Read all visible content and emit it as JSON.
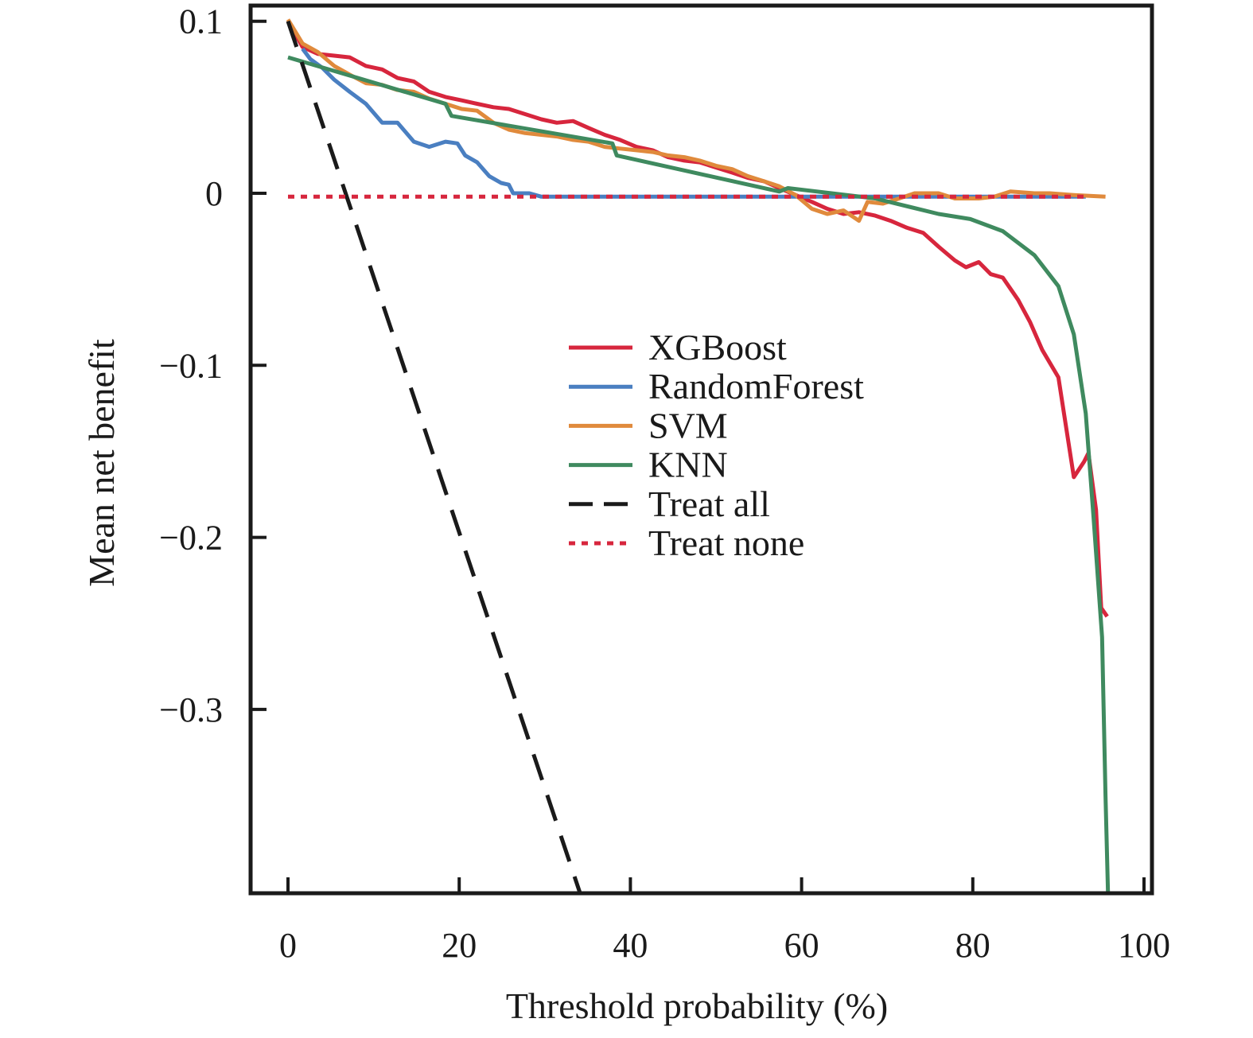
{
  "chart_data": {
    "type": "line",
    "title": "",
    "xlabel": "Threshold probability (%)",
    "ylabel": "Mean net benefit",
    "xlim": [
      0,
      100
    ],
    "ylim": [
      -0.408,
      0.111
    ],
    "grid": false,
    "legend_position": "center-right",
    "x_ticks": [
      0,
      20,
      40,
      60,
      80,
      100
    ],
    "x_tick_labels": [
      "0",
      "20",
      "40",
      "60",
      "80",
      "100"
    ],
    "y_ticks": [
      0.1,
      0,
      -0.1,
      -0.2,
      -0.3
    ],
    "y_tick_labels": [
      "0.1",
      "0",
      "−0.1",
      "−0.2",
      "−0.3"
    ],
    "series": [
      {
        "name": "XGBoost",
        "color": "#d7263d",
        "style": "solid",
        "points": [
          [
            0,
            0.1
          ],
          [
            1.7,
            0.085
          ],
          [
            3.5,
            0.081
          ],
          [
            5.4,
            0.08
          ],
          [
            7.2,
            0.079
          ],
          [
            9.1,
            0.074
          ],
          [
            11.0,
            0.072
          ],
          [
            12.8,
            0.067
          ],
          [
            14.7,
            0.065
          ],
          [
            16.5,
            0.059
          ],
          [
            18.4,
            0.056
          ],
          [
            20.3,
            0.054
          ],
          [
            22.1,
            0.052
          ],
          [
            24.0,
            0.05
          ],
          [
            25.8,
            0.049
          ],
          [
            27.7,
            0.046
          ],
          [
            29.6,
            0.043
          ],
          [
            31.4,
            0.041
          ],
          [
            33.3,
            0.042
          ],
          [
            35.1,
            0.038
          ],
          [
            37.0,
            0.034
          ],
          [
            38.8,
            0.031
          ],
          [
            40.7,
            0.027
          ],
          [
            42.6,
            0.025
          ],
          [
            44.4,
            0.021
          ],
          [
            46.3,
            0.019
          ],
          [
            48.1,
            0.018
          ],
          [
            50.0,
            0.015
          ],
          [
            51.9,
            0.012
          ],
          [
            53.7,
            0.009
          ],
          [
            55.6,
            0.007
          ],
          [
            57.4,
            0.003
          ],
          [
            59.3,
            -0.001
          ],
          [
            61.2,
            -0.005
          ],
          [
            63.0,
            -0.009
          ],
          [
            64.9,
            -0.012
          ],
          [
            66.7,
            -0.011
          ],
          [
            68.6,
            -0.013
          ],
          [
            70.4,
            -0.016
          ],
          [
            72.3,
            -0.02
          ],
          [
            74.2,
            -0.023
          ],
          [
            76.0,
            -0.031
          ],
          [
            77.9,
            -0.039
          ],
          [
            79.2,
            -0.043
          ],
          [
            80.7,
            -0.04
          ],
          [
            82.1,
            -0.047
          ],
          [
            83.5,
            -0.049
          ],
          [
            85.3,
            -0.062
          ],
          [
            86.7,
            -0.075
          ],
          [
            88.1,
            -0.091
          ],
          [
            90.0,
            -0.107
          ],
          [
            91.8,
            -0.165
          ],
          [
            93.0,
            -0.156
          ],
          [
            93.5,
            -0.151
          ],
          [
            94.4,
            -0.184
          ],
          [
            95.0,
            -0.241
          ],
          [
            95.7,
            -0.246
          ]
        ]
      },
      {
        "name": "RandomForest",
        "color": "#4a7fc1",
        "style": "solid",
        "points": [
          [
            1.7,
            0.084
          ],
          [
            2.6,
            0.078
          ],
          [
            4.0,
            0.073
          ],
          [
            5.4,
            0.066
          ],
          [
            7.2,
            0.059
          ],
          [
            9.1,
            0.052
          ],
          [
            11.0,
            0.041
          ],
          [
            12.8,
            0.041
          ],
          [
            14.7,
            0.03
          ],
          [
            16.5,
            0.027
          ],
          [
            18.4,
            0.03
          ],
          [
            19.8,
            0.029
          ],
          [
            20.7,
            0.022
          ],
          [
            22.1,
            0.018
          ],
          [
            23.5,
            0.01
          ],
          [
            24.9,
            0.006
          ],
          [
            25.8,
            0.005
          ],
          [
            26.3,
            0.0
          ],
          [
            28.2,
            0.0
          ],
          [
            29.6,
            -0.002
          ],
          [
            93.2,
            -0.002
          ]
        ]
      },
      {
        "name": "SVM",
        "color": "#e08a3c",
        "style": "solid",
        "points": [
          [
            0,
            0.101
          ],
          [
            1.7,
            0.087
          ],
          [
            3.5,
            0.082
          ],
          [
            5.4,
            0.074
          ],
          [
            7.2,
            0.069
          ],
          [
            9.1,
            0.064
          ],
          [
            11.0,
            0.063
          ],
          [
            12.8,
            0.06
          ],
          [
            14.7,
            0.059
          ],
          [
            16.5,
            0.055
          ],
          [
            18.4,
            0.052
          ],
          [
            20.3,
            0.049
          ],
          [
            22.1,
            0.048
          ],
          [
            24.0,
            0.041
          ],
          [
            25.8,
            0.037
          ],
          [
            27.7,
            0.035
          ],
          [
            29.6,
            0.034
          ],
          [
            31.4,
            0.033
          ],
          [
            33.3,
            0.031
          ],
          [
            35.1,
            0.03
          ],
          [
            37.0,
            0.027
          ],
          [
            38.8,
            0.026
          ],
          [
            40.7,
            0.025
          ],
          [
            42.6,
            0.024
          ],
          [
            44.4,
            0.022
          ],
          [
            46.3,
            0.021
          ],
          [
            48.1,
            0.019
          ],
          [
            50.0,
            0.016
          ],
          [
            51.9,
            0.014
          ],
          [
            53.7,
            0.01
          ],
          [
            55.6,
            0.007
          ],
          [
            57.4,
            0.004
          ],
          [
            59.3,
            -0.001
          ],
          [
            61.2,
            -0.009
          ],
          [
            63.0,
            -0.012
          ],
          [
            64.9,
            -0.01
          ],
          [
            66.7,
            -0.016
          ],
          [
            67.7,
            -0.005
          ],
          [
            69.5,
            -0.006
          ],
          [
            71.4,
            -0.003
          ],
          [
            73.2,
            0.0
          ],
          [
            76.0,
            0.0
          ],
          [
            77.9,
            -0.003
          ],
          [
            80.7,
            -0.003
          ],
          [
            82.5,
            -0.002
          ],
          [
            84.4,
            0.001
          ],
          [
            87.2,
            0.0
          ],
          [
            89.0,
            0.0
          ],
          [
            91.8,
            -0.001
          ],
          [
            95.5,
            -0.002
          ]
        ]
      },
      {
        "name": "KNN",
        "color": "#3f8a5f",
        "style": "solid",
        "points": [
          [
            0,
            0.079
          ],
          [
            18.4,
            0.052
          ],
          [
            19.1,
            0.045
          ],
          [
            37.9,
            0.029
          ],
          [
            38.4,
            0.022
          ],
          [
            57.4,
            0.001
          ],
          [
            58.4,
            0.003
          ],
          [
            68.6,
            -0.003
          ],
          [
            76.0,
            -0.012
          ],
          [
            79.7,
            -0.015
          ],
          [
            83.5,
            -0.022
          ],
          [
            87.2,
            -0.036
          ],
          [
            90.0,
            -0.054
          ],
          [
            91.8,
            -0.082
          ],
          [
            93.2,
            -0.128
          ],
          [
            94.1,
            -0.188
          ],
          [
            95.1,
            -0.258
          ],
          [
            95.5,
            -0.35
          ],
          [
            95.8,
            -0.408
          ]
        ]
      },
      {
        "name": "Treat all",
        "color": "#1a1a1a",
        "style": "dashed",
        "points": [
          [
            0,
            0.1
          ],
          [
            34.2,
            -0.408
          ]
        ]
      },
      {
        "name": "Treat none",
        "color": "#d7263d",
        "style": "dotted",
        "points": [
          [
            0,
            -0.002
          ],
          [
            93.2,
            -0.002
          ]
        ]
      }
    ]
  }
}
